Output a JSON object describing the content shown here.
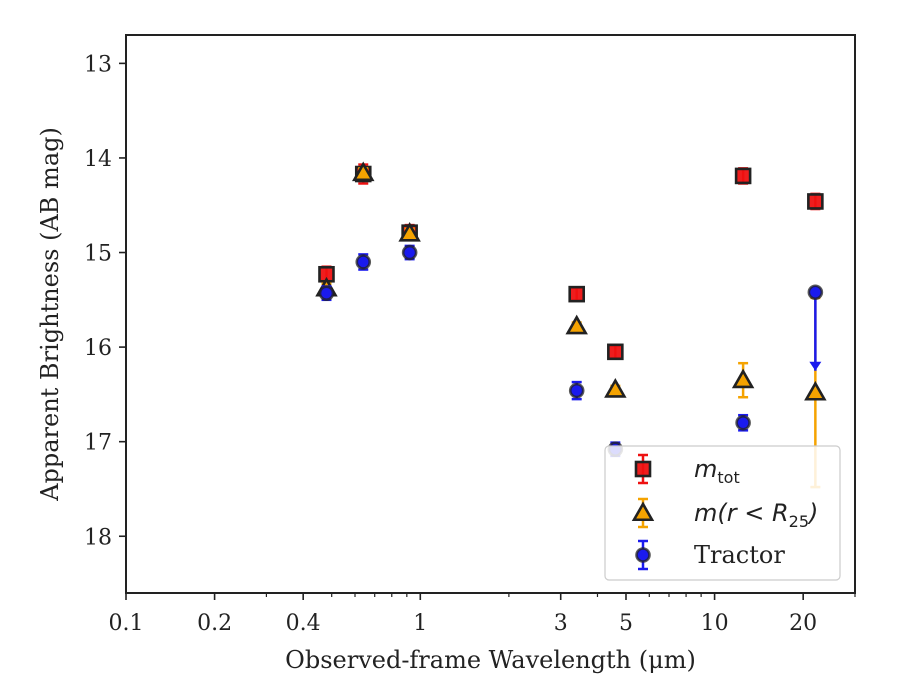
{
  "chart_data": {
    "type": "scatter",
    "title": "",
    "xlabel": "Observed-frame Wavelength (μm)",
    "ylabel": "Apparent Brightness (AB mag)",
    "xscale": "log",
    "xlim": [
      0.1,
      30
    ],
    "ylim": [
      18.6,
      12.7
    ],
    "y_inverted": true,
    "grid": false,
    "legend_position": "lower-right",
    "x_ticks": [
      {
        "value": 0.1,
        "label": "0.1"
      },
      {
        "value": 0.2,
        "label": "0.2"
      },
      {
        "value": 0.4,
        "label": "0.4"
      },
      {
        "value": 1,
        "label": "1"
      },
      {
        "value": 3,
        "label": "3"
      },
      {
        "value": 5,
        "label": "5"
      },
      {
        "value": 10,
        "label": "10"
      },
      {
        "value": 20,
        "label": "20"
      }
    ],
    "x_minor_ticks": [
      0.3,
      0.5,
      0.6,
      0.7,
      0.8,
      0.9,
      2,
      4,
      6,
      7,
      8,
      9,
      30
    ],
    "y_ticks": [
      {
        "value": 13,
        "label": "13"
      },
      {
        "value": 14,
        "label": "14"
      },
      {
        "value": 15,
        "label": "15"
      },
      {
        "value": 16,
        "label": "16"
      },
      {
        "value": 17,
        "label": "17"
      },
      {
        "value": 18,
        "label": "18"
      }
    ],
    "series": [
      {
        "name": "m_tot",
        "legend_parts": [
          "m",
          "tot",
          ""
        ],
        "marker": "square",
        "color": "#ee1111",
        "edgecolor": "#222222",
        "points": [
          {
            "x": 0.48,
            "y": 15.23,
            "err": 0.08
          },
          {
            "x": 0.64,
            "y": 14.17,
            "err": 0.1
          },
          {
            "x": 0.92,
            "y": 14.79,
            "err": 0.08
          },
          {
            "x": 3.4,
            "y": 15.44,
            "err": 0.07
          },
          {
            "x": 4.6,
            "y": 16.05,
            "err": 0.07
          },
          {
            "x": 12.5,
            "y": 14.19,
            "err": 0.08
          },
          {
            "x": 22,
            "y": 14.46,
            "err": 0.08
          }
        ]
      },
      {
        "name": "m(r < R25)",
        "legend_parts": [
          "m(r < R",
          "25",
          ")"
        ],
        "marker": "triangle",
        "color": "#f5a300",
        "edgecolor": "#222222",
        "points": [
          {
            "x": 0.48,
            "y": 15.38,
            "err": 0.05
          },
          {
            "x": 0.64,
            "y": 14.16,
            "err": 0.05
          },
          {
            "x": 0.92,
            "y": 14.8,
            "err": 0.05
          },
          {
            "x": 3.4,
            "y": 15.78,
            "err": 0.04
          },
          {
            "x": 4.6,
            "y": 16.45,
            "err": 0.04
          },
          {
            "x": 12.5,
            "y": 16.35,
            "err": 0.18
          },
          {
            "x": 22,
            "y": 16.48,
            "err": 1.0
          }
        ]
      },
      {
        "name": "Tractor",
        "legend_parts": [
          "Tractor",
          "",
          ""
        ],
        "marker": "circle",
        "color": "#1a1aee",
        "edgecolor": "#222222",
        "points": [
          {
            "x": 0.48,
            "y": 15.43,
            "err": 0.07
          },
          {
            "x": 0.64,
            "y": 15.1,
            "err": 0.08
          },
          {
            "x": 0.92,
            "y": 15.0,
            "err": 0.07
          },
          {
            "x": 3.4,
            "y": 16.46,
            "err": 0.09
          },
          {
            "x": 4.6,
            "y": 17.08,
            "err": 0.07
          },
          {
            "x": 12.5,
            "y": 16.8,
            "err": 0.08
          },
          {
            "x": 22,
            "y": 15.42,
            "upper_limit_to": 16.25
          }
        ]
      }
    ]
  }
}
